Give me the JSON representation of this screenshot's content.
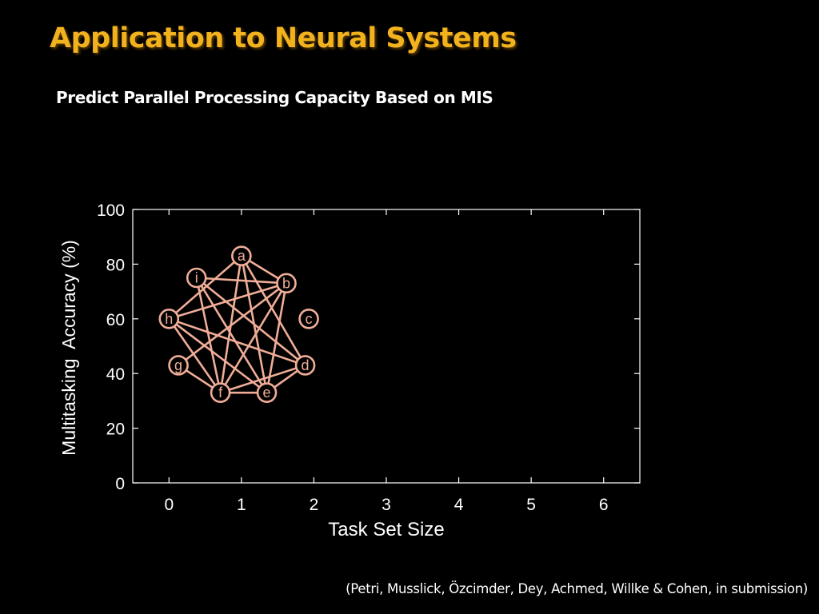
{
  "slide": {
    "title": "Application to Neural Systems",
    "subtitle": "Predict Parallel Processing Capacity Based on MIS",
    "citation": "(Petri, Musslick, Özcimder, Dey, Achmed, Willke & Cohen, in submission)"
  },
  "colors": {
    "background": "#000000",
    "title": "#f2b21d",
    "text": "#ffffff",
    "axis": "#ffffff",
    "graph": "#f0ad98"
  },
  "chart_data": {
    "type": "scatter",
    "xlabel": "Task Set Size",
    "ylabel": "Multitasking  Accuracy (%)",
    "xlim": [
      -0.5,
      6.5
    ],
    "ylim": [
      0,
      100
    ],
    "xticks": [
      "0",
      "1",
      "2",
      "3",
      "4",
      "5",
      "6"
    ],
    "yticks": [
      "0",
      "20",
      "40",
      "60",
      "80",
      "100"
    ],
    "grid": false,
    "series": [],
    "graph_overlay": {
      "nodes": [
        {
          "id": "a",
          "x": 1.0,
          "y": 83
        },
        {
          "id": "b",
          "x": 1.62,
          "y": 73
        },
        {
          "id": "c",
          "x": 1.93,
          "y": 60
        },
        {
          "id": "d",
          "x": 1.88,
          "y": 43
        },
        {
          "id": "e",
          "x": 1.35,
          "y": 33
        },
        {
          "id": "f",
          "x": 0.71,
          "y": 33
        },
        {
          "id": "g",
          "x": 0.13,
          "y": 43
        },
        {
          "id": "h",
          "x": 0.0,
          "y": 60
        },
        {
          "id": "i",
          "x": 0.38,
          "y": 75
        }
      ],
      "edges": [
        [
          "a",
          "b"
        ],
        [
          "a",
          "d"
        ],
        [
          "a",
          "e"
        ],
        [
          "a",
          "f"
        ],
        [
          "a",
          "h"
        ],
        [
          "b",
          "e"
        ],
        [
          "b",
          "f"
        ],
        [
          "b",
          "g"
        ],
        [
          "b",
          "h"
        ],
        [
          "b",
          "i"
        ],
        [
          "d",
          "e"
        ],
        [
          "d",
          "f"
        ],
        [
          "d",
          "h"
        ],
        [
          "d",
          "i"
        ],
        [
          "e",
          "f"
        ],
        [
          "e",
          "h"
        ],
        [
          "e",
          "i"
        ],
        [
          "f",
          "g"
        ],
        [
          "f",
          "h"
        ],
        [
          "f",
          "i"
        ]
      ]
    }
  }
}
